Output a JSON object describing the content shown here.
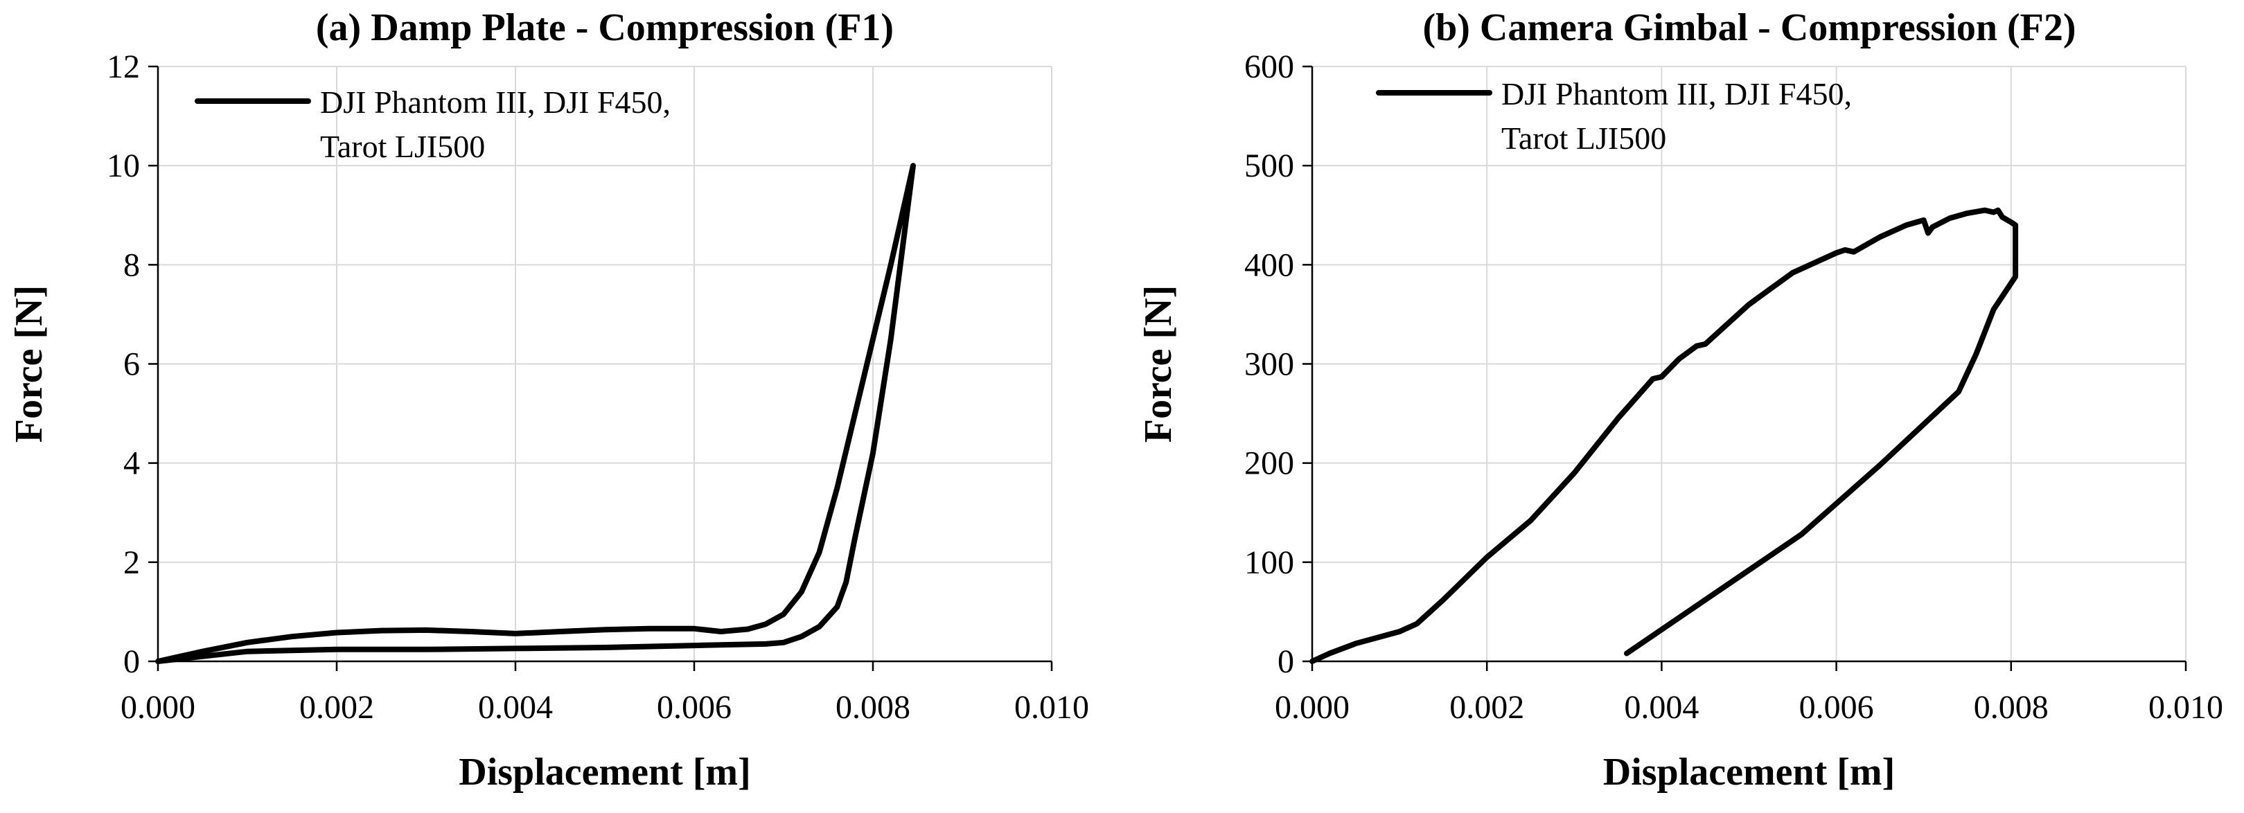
{
  "chart_data": [
    {
      "type": "line",
      "title": "(a) Damp Plate - Compression (F1)",
      "xlabel": "Displacement [m]",
      "ylabel": "Force [N]",
      "xlim": [
        0,
        0.01
      ],
      "ylim": [
        0,
        12
      ],
      "xticks": [
        "0.000",
        "0.002",
        "0.004",
        "0.006",
        "0.008",
        "0.010"
      ],
      "yticks": [
        "0",
        "2",
        "4",
        "6",
        "8",
        "10",
        "12"
      ],
      "xtick_values": [
        0,
        0.002,
        0.004,
        0.006,
        0.008,
        0.01
      ],
      "ytick_values": [
        0,
        2,
        4,
        6,
        8,
        10,
        12
      ],
      "grid": true,
      "legend_position": "top-left",
      "series": [
        {
          "name": "DJI Phantom III, DJI F450, Tarot LJI500",
          "legend_lines": [
            "DJI Phantom III, DJI F450,",
            "Tarot LJI500"
          ],
          "x": [
            0,
            0.0005,
            0.001,
            0.0015,
            0.002,
            0.0025,
            0.003,
            0.0035,
            0.004,
            0.0045,
            0.005,
            0.0055,
            0.006,
            0.0063,
            0.0066,
            0.0068,
            0.007,
            0.0072,
            0.0074,
            0.0076,
            0.0078,
            0.008,
            0.0082,
            0.00845,
            0.0082,
            0.008,
            0.0078,
            0.0077,
            0.0076,
            0.0074,
            0.0072,
            0.007,
            0.0068,
            0.006,
            0.005,
            0.004,
            0.003,
            0.002,
            0.001,
            0.0005,
            0
          ],
          "y": [
            0,
            0.2,
            0.38,
            0.5,
            0.58,
            0.62,
            0.63,
            0.6,
            0.56,
            0.6,
            0.64,
            0.66,
            0.66,
            0.6,
            0.65,
            0.75,
            0.95,
            1.4,
            2.2,
            3.5,
            5.0,
            6.5,
            8.0,
            10.0,
            6.5,
            4.2,
            2.5,
            1.6,
            1.1,
            0.7,
            0.5,
            0.38,
            0.35,
            0.32,
            0.28,
            0.26,
            0.24,
            0.24,
            0.2,
            0.1,
            0
          ]
        }
      ]
    },
    {
      "type": "line",
      "title": "(b) Camera Gimbal - Compression (F2)",
      "xlabel": "Displacement [m]",
      "ylabel": "Force [N]",
      "xlim": [
        0,
        0.01
      ],
      "ylim": [
        0,
        600
      ],
      "xticks": [
        "0.000",
        "0.002",
        "0.004",
        "0.006",
        "0.008",
        "0.010"
      ],
      "yticks": [
        "0",
        "100",
        "200",
        "300",
        "400",
        "500",
        "600"
      ],
      "xtick_values": [
        0,
        0.002,
        0.004,
        0.006,
        0.008,
        0.01
      ],
      "ytick_values": [
        0,
        100,
        200,
        300,
        400,
        500,
        600
      ],
      "grid": true,
      "legend_position": "top-left",
      "series": [
        {
          "name": "DJI Phantom III, DJI F450, Tarot LJI500",
          "legend_lines": [
            "DJI Phantom III, DJI F450,",
            "Tarot LJI500"
          ],
          "x": [
            0,
            0.0002,
            0.0005,
            0.001,
            0.0012,
            0.0015,
            0.002,
            0.0025,
            0.003,
            0.0035,
            0.0039,
            0.004,
            0.0042,
            0.0044,
            0.0045,
            0.005,
            0.0055,
            0.006,
            0.0061,
            0.0062,
            0.0065,
            0.0068,
            0.007,
            0.00705,
            0.0071,
            0.0073,
            0.0075,
            0.0077,
            0.0078,
            0.00785,
            0.0079,
            0.008,
            0.00805,
            0.00805,
            0.0078,
            0.0076,
            0.0074,
            0.0065,
            0.0056,
            0.0045,
            0.0036
          ],
          "y": [
            0,
            8,
            18,
            30,
            38,
            62,
            105,
            142,
            190,
            245,
            285,
            287,
            305,
            318,
            320,
            360,
            392,
            412,
            415,
            413,
            428,
            440,
            445,
            432,
            438,
            447,
            452,
            455,
            453,
            455,
            448,
            443,
            440,
            388,
            355,
            310,
            272,
            198,
            128,
            62,
            8
          ]
        }
      ]
    }
  ]
}
